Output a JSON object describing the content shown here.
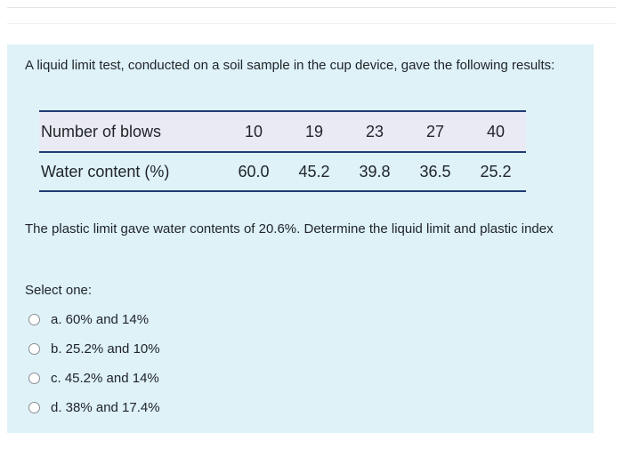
{
  "question": {
    "intro": "A liquid limit test, conducted on a soil sample in the cup device, gave the following results:",
    "table": {
      "header_row": {
        "label": "Number of blows",
        "values": [
          "10",
          "19",
          "23",
          "27",
          "40"
        ]
      },
      "body_row": {
        "label": "Water content (%)",
        "values": [
          "60.0",
          "45.2",
          "39.8",
          "36.5",
          "25.2"
        ]
      }
    },
    "followup": "The plastic limit gave water contents of 20.6%. Determine the liquid limit and plastic index",
    "select_label": "Select one:",
    "options": [
      {
        "label": "a. 60% and 14%"
      },
      {
        "label": "b. 25.2% and 10%"
      },
      {
        "label": "c. 45.2% and 14%"
      },
      {
        "label": "d. 38% and 17.4%"
      }
    ]
  },
  "colors": {
    "panel_background": "#def2f8",
    "table_rule": "#1f3b73",
    "header_row_background": "#e9eaf4"
  }
}
